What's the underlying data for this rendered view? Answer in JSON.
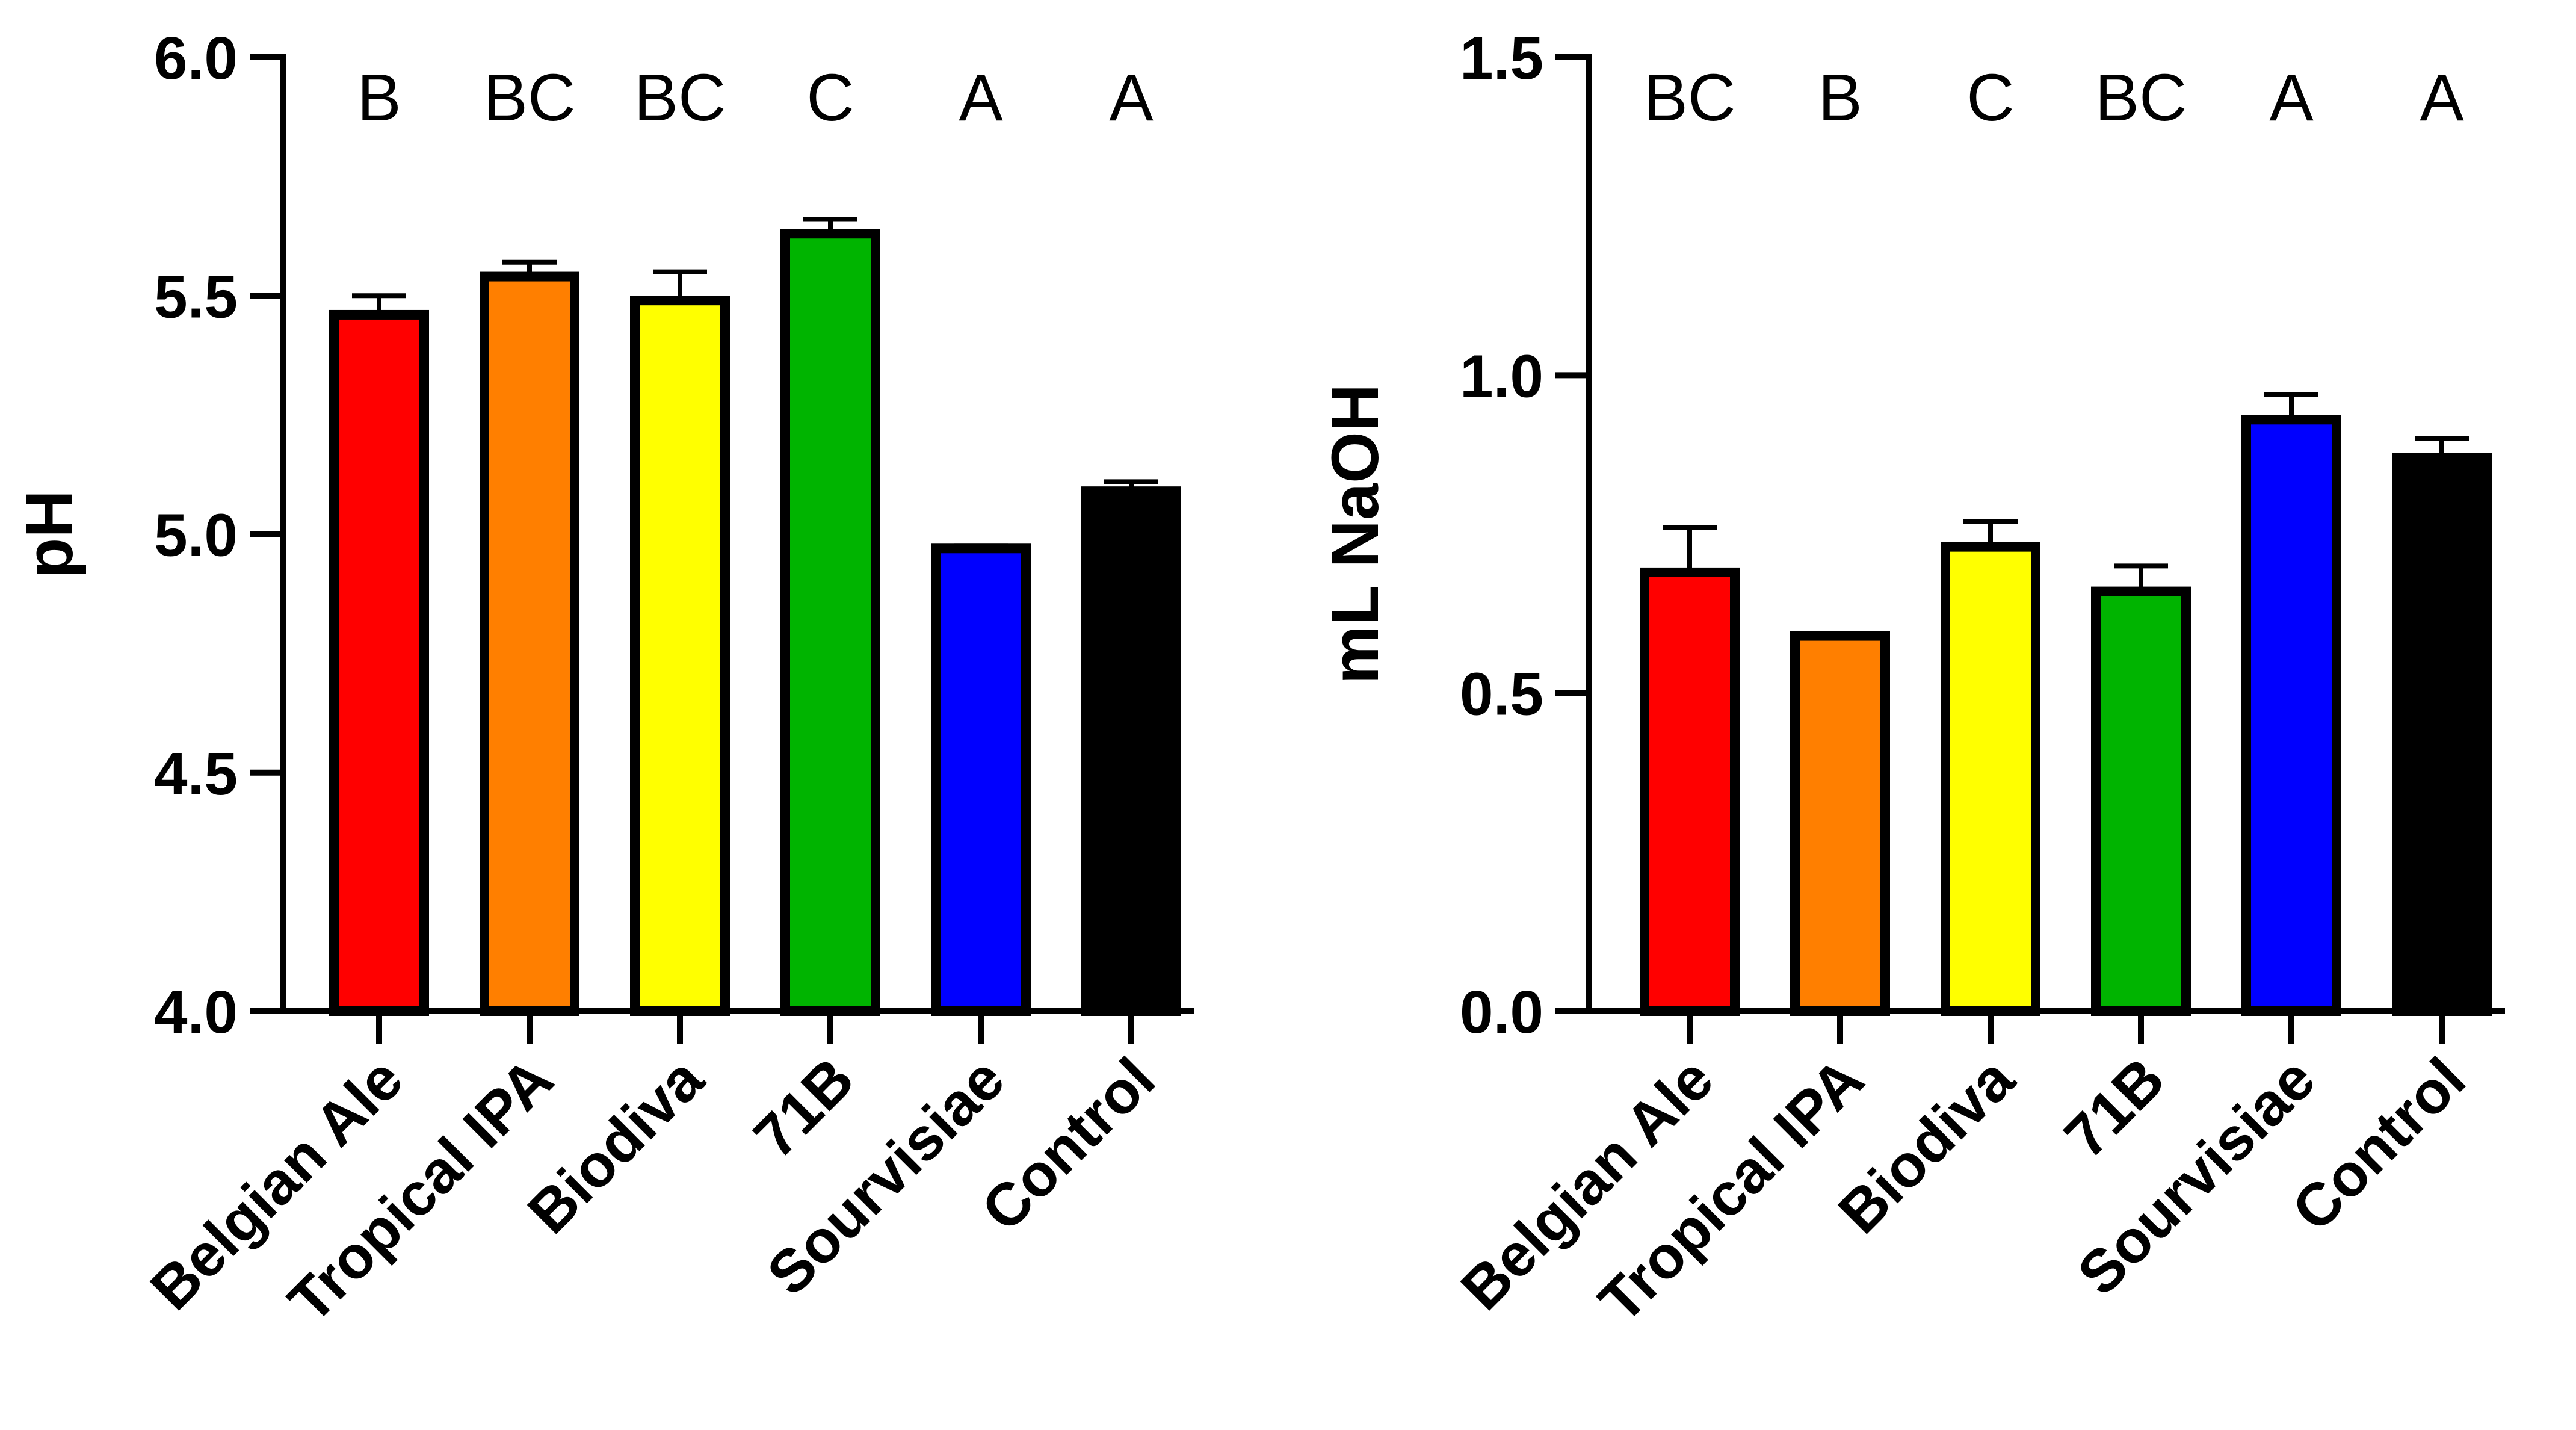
{
  "chart_data": [
    {
      "type": "bar",
      "title": "",
      "xlabel": "",
      "ylabel": "pH",
      "ylim": [
        4.0,
        6.0
      ],
      "yticks": [
        "4.0",
        "4.5",
        "5.0",
        "5.5",
        "6.0"
      ],
      "ytick_values": [
        4.0,
        4.5,
        5.0,
        5.5,
        6.0
      ],
      "categories": [
        "Belgian Ale",
        "Tropical IPA",
        "Biodiva",
        "71B",
        "Sourvisiae",
        "Control"
      ],
      "values": [
        5.46,
        5.54,
        5.49,
        5.63,
        4.97,
        5.09
      ],
      "errors": [
        0.04,
        0.03,
        0.06,
        0.03,
        0.005,
        0.02
      ],
      "colors": [
        "#ff0000",
        "#ff7f00",
        "#ffff00",
        "#00b400",
        "#0000ff",
        "#000000"
      ],
      "group_letters": [
        "B",
        "BC",
        "BC",
        "C",
        "A",
        "A"
      ]
    },
    {
      "type": "bar",
      "title": "",
      "xlabel": "",
      "ylabel": "mL NaOH",
      "ylim": [
        0.0,
        1.5
      ],
      "yticks": [
        "0.0",
        "0.5",
        "1.0",
        "1.5"
      ],
      "ytick_values": [
        0.0,
        0.5,
        1.0,
        1.5
      ],
      "categories": [
        "Belgian Ale",
        "Tropical IPA",
        "Biodiva",
        "71B",
        "Sourvisiae",
        "Control"
      ],
      "values": [
        0.69,
        0.59,
        0.73,
        0.66,
        0.93,
        0.87
      ],
      "errors": [
        0.07,
        0.0,
        0.04,
        0.04,
        0.04,
        0.03
      ],
      "colors": [
        "#ff0000",
        "#ff7f00",
        "#ffff00",
        "#00b400",
        "#0000ff",
        "#000000"
      ],
      "group_letters": [
        "BC",
        "B",
        "C",
        "BC",
        "A",
        "A"
      ]
    }
  ]
}
